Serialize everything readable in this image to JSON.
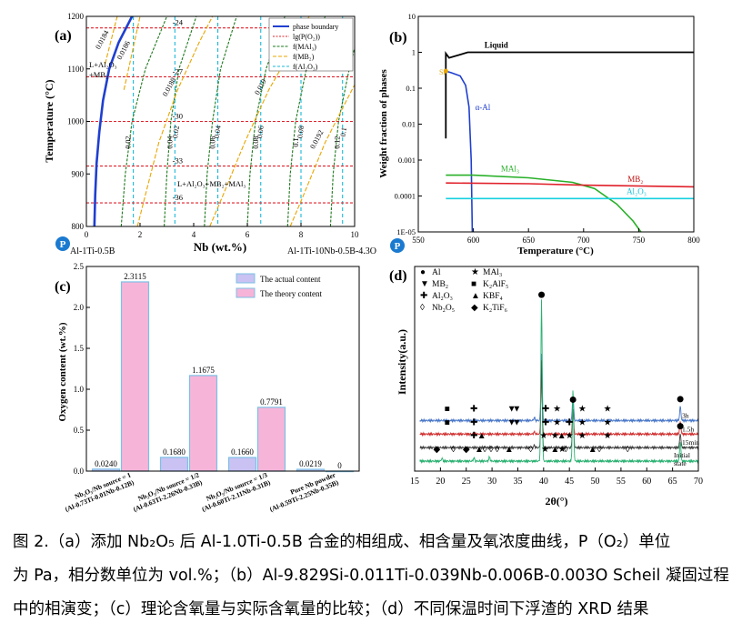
{
  "caption": {
    "line1": "图 2.（a）添加 Nb₂O₅ 后 Al-1.0Ti-0.5B 合金的相组成、相含量及氧浓度曲线，P（O₂）单位",
    "line2": "为 Pa，相分数单位为 vol.%；（b）Al-9.829Si-0.011Ti-0.039Nb-0.006B-0.003O Scheil 凝固过程",
    "line3": "中的相演变；（c）理论含氧量与实际含氧量的比较；（d）不同保温时间下浮渣的 XRD 结果"
  },
  "chart_data": [
    {
      "panel": "(a)",
      "type": "line",
      "xlabel": "Nb (wt.%)",
      "ylabel": "Temperature (°C)",
      "xlim": [
        0,
        10
      ],
      "ylim": [
        800,
        1200
      ],
      "xticks": [
        0,
        2,
        4,
        6,
        8,
        10
      ],
      "yticks": [
        800,
        900,
        1000,
        1100,
        1200
      ],
      "left_note": "Al-1Ti-0.5B",
      "right_note": "Al-1Ti-10Nb-0.5B-4.3O",
      "legend": {
        "position": "top-right",
        "entries": [
          "phase boundary",
          "lg(P(O₂))",
          "f(MAl₃)",
          "f(MB₂)",
          "f(Al₂O₃)"
        ]
      },
      "colors": {
        "phase_boundary": "#1f3fd0",
        "po2": "#e0202a",
        "mal3": "#1e7a1e",
        "mb2": "#e8a600",
        "al2o3": "#18b8d8"
      },
      "phase_boundary": [
        [
          0.3,
          800
        ],
        [
          0.33,
          860
        ],
        [
          0.38,
          920
        ],
        [
          0.48,
          980
        ],
        [
          0.62,
          1040
        ],
        [
          0.85,
          1100
        ],
        [
          1.2,
          1150
        ],
        [
          1.7,
          1200
        ]
      ],
      "po2_isobars": [
        {
          "label": "-24",
          "y": 1178
        },
        {
          "label": "-27",
          "y": 1085
        },
        {
          "label": "-30",
          "y": 1000
        },
        {
          "label": "-33",
          "y": 915
        },
        {
          "label": "-36",
          "y": 845
        }
      ],
      "al2o3_verticals": [
        {
          "label": "0.02",
          "x": 1.75
        },
        {
          "label": "0.04",
          "x": 3.3
        },
        {
          "label": "0.06",
          "x": 4.9
        },
        {
          "label": "0.08",
          "x": 6.5
        },
        {
          "label": "0.1",
          "x": 8.0
        },
        {
          "label": "0.12",
          "x": 9.55
        }
      ],
      "mal3_curves": [
        {
          "label": "",
          "points": [
            [
              1.3,
              800
            ],
            [
              1.45,
              900
            ],
            [
              1.7,
              1000
            ],
            [
              2.2,
              1100
            ],
            [
              3.0,
              1200
            ]
          ]
        },
        {
          "label": "0.02",
          "points": [
            [
              2.9,
              800
            ],
            [
              3.0,
              900
            ],
            [
              3.15,
              1000
            ],
            [
              3.45,
              1100
            ],
            [
              4.1,
              1200
            ]
          ]
        },
        {
          "label": "0.04",
          "points": [
            [
              4.4,
              800
            ],
            [
              4.5,
              900
            ],
            [
              4.7,
              1000
            ],
            [
              5.0,
              1100
            ],
            [
              5.6,
              1200
            ]
          ]
        },
        {
          "label": "0.06",
          "points": [
            [
              6.0,
              800
            ],
            [
              6.1,
              900
            ],
            [
              6.3,
              1000
            ],
            [
              6.7,
              1100
            ],
            [
              7.4,
              1200
            ]
          ]
        },
        {
          "label": "0.08",
          "points": [
            [
              7.5,
              800
            ],
            [
              7.6,
              900
            ],
            [
              7.8,
              1000
            ],
            [
              8.2,
              1100
            ],
            [
              8.9,
              1200
            ]
          ]
        },
        {
          "label": "0.1",
          "points": [
            [
              9.1,
              800
            ],
            [
              9.2,
              900
            ],
            [
              9.4,
              1000
            ],
            [
              9.8,
              1100
            ],
            [
              10.0,
              1140
            ]
          ]
        }
      ],
      "mb2_curves": [
        {
          "label": "0.0184",
          "points": [
            [
              0.7,
              1110
            ],
            [
              0.9,
              1150
            ],
            [
              1.15,
              1200
            ]
          ]
        },
        {
          "label": "0.0186",
          "points": [
            [
              1.4,
              1060
            ],
            [
              1.7,
              1130
            ],
            [
              2.0,
              1200
            ]
          ]
        },
        {
          "label": "0.0188",
          "points": [
            [
              1.9,
              800
            ],
            [
              2.2,
              860
            ],
            [
              2.7,
              960
            ],
            [
              3.4,
              1060
            ],
            [
              4.2,
              1150
            ],
            [
              4.7,
              1200
            ]
          ]
        },
        {
          "label": "0.019",
          "points": [
            [
              4.6,
              800
            ],
            [
              5.1,
              860
            ],
            [
              5.9,
              960
            ],
            [
              6.8,
              1060
            ],
            [
              7.8,
              1150
            ],
            [
              8.3,
              1200
            ]
          ]
        },
        {
          "label": "0.0192",
          "points": [
            [
              7.6,
              800
            ],
            [
              8.1,
              860
            ],
            [
              8.9,
              960
            ],
            [
              9.7,
              1040
            ],
            [
              10.0,
              1070
            ]
          ]
        }
      ],
      "region_labels": [
        "L+Al₂O₃ +MB₂",
        "L+Al₂O₃+MB₂+MAl₃"
      ]
    },
    {
      "panel": "(b)",
      "type": "line",
      "xlabel": "Temperature (°C)",
      "ylabel": "Weight fraction of phases",
      "xscale": "linear",
      "yscale": "log",
      "xlim": [
        550,
        800
      ],
      "ylim": [
        1e-05,
        10
      ],
      "xticks": [
        550,
        600,
        650,
        700,
        750,
        800
      ],
      "yticks": [
        "1E-05",
        "0.0001",
        "0.001",
        "0.01",
        "0.1",
        "1",
        "10"
      ],
      "series": [
        {
          "name": "Liquid",
          "color": "#000000",
          "points": [
            [
              575,
              0.004
            ],
            [
              575,
              0.93
            ],
            [
              578,
              0.7
            ],
            [
              595,
              1.0
            ],
            [
              800,
              1.0
            ]
          ]
        },
        {
          "name": "α-Al",
          "color": "#1f3fd0",
          "points": [
            [
              575,
              0.3
            ],
            [
              580,
              0.27
            ],
            [
              588,
              0.22
            ],
            [
              593,
              0.12
            ],
            [
              596,
              0.03
            ],
            [
              598,
              0.001
            ],
            [
              599,
              1e-05
            ]
          ]
        },
        {
          "name": "Si",
          "color": "#e8a600",
          "points": [
            [
              575,
              0.3
            ]
          ]
        },
        {
          "name": "MAl₃",
          "color": "#28b028",
          "points": [
            [
              575,
              0.00038
            ],
            [
              600,
              0.00038
            ],
            [
              650,
              0.00032
            ],
            [
              690,
              0.00024
            ],
            [
              710,
              0.00016
            ],
            [
              730,
              6e-05
            ],
            [
              745,
              2e-05
            ],
            [
              752,
              1e-05
            ]
          ]
        },
        {
          "name": "MB₂",
          "color": "#e0202a",
          "points": [
            [
              575,
              0.00023
            ],
            [
              650,
              0.00022
            ],
            [
              700,
              0.0002
            ],
            [
              800,
              0.00018
            ]
          ]
        },
        {
          "name": "Al₂O₃",
          "color": "#18d0e0",
          "points": [
            [
              575,
              8.5e-05
            ],
            [
              800,
              8.5e-05
            ]
          ]
        }
      ]
    },
    {
      "panel": "(c)",
      "type": "bar",
      "ylabel": "Oxygen content (wt.%)",
      "ylim": [
        0,
        2.5
      ],
      "yticks": [
        0,
        0.5,
        1.0,
        1.5,
        2.0,
        2.5
      ],
      "legend": {
        "position": "top-right",
        "entries": [
          "The actual content",
          "The theory content"
        ]
      },
      "colors": {
        "actual": "#c9c2f2",
        "theory": "#f7b4d9",
        "edge": "#7cc0e6"
      },
      "categories": [
        {
          "line1": "Nb₂O₅/Nb source = 1",
          "line2": "(Al-0.73Ti-0.01Nb-0.12B)"
        },
        {
          "line1": "Nb₂O₅/Nb source = 1/2",
          "line2": "(Al-0.63Ti-2.26Nb-0.33B)"
        },
        {
          "line1": "Nb₂O₅/Nb source = 1/3",
          "line2": "(Al-0.60Ti-2.11Nb-0.31B)"
        },
        {
          "line1": "Pure Nb powder",
          "line2": "(Al-0.59Ti-2.25Nb-0.35B)"
        }
      ],
      "series": [
        {
          "name": "The actual content",
          "values": [
            0.024,
            0.168,
            0.166,
            0.0219
          ],
          "labels": [
            "0.0240",
            "0.1680",
            "0.1660",
            "0.0219"
          ]
        },
        {
          "name": "The theory content",
          "values": [
            2.3115,
            1.1675,
            0.7791,
            0
          ],
          "labels": [
            "2.3115",
            "1.1675",
            "0.7791",
            "0"
          ]
        }
      ]
    },
    {
      "panel": "(d)",
      "type": "line",
      "xlabel": "2θ(°)",
      "ylabel": "Intensity(a.u.)",
      "xlim": [
        15,
        70
      ],
      "xticks": [
        15,
        20,
        25,
        30,
        35,
        40,
        45,
        50,
        55,
        60,
        65,
        70
      ],
      "legend_entries": [
        {
          "symbol": "●",
          "text": "Al"
        },
        {
          "symbol": "★",
          "text": "MAl₃"
        },
        {
          "symbol": "▼",
          "text": "MB₂"
        },
        {
          "symbol": "■",
          "text": "K₂AlF₅"
        },
        {
          "symbol": "✚",
          "text": "Al₂O₃"
        },
        {
          "symbol": "▲",
          "text": "KBF₄"
        },
        {
          "symbol": "◊",
          "text": "Nb₂O₅"
        },
        {
          "symbol": "◆",
          "text": "K₂TiF₆"
        }
      ],
      "series": [
        {
          "name": "3h",
          "color": "#4a78c8",
          "baseline": 0.8,
          "peaks": [
            [
              39.6,
              1.2
            ],
            [
              45.7,
              0.45
            ],
            [
              66.5,
              0.25
            ],
            [
              38.2,
              0.05
            ]
          ]
        },
        {
          "name": "1.5h",
          "color": "#d03030",
          "baseline": 0.56,
          "peaks": [
            [
              39.6,
              1.05
            ],
            [
              45.7,
              0.42
            ],
            [
              66.5,
              0.22
            ],
            [
              38.2,
              0.04
            ]
          ]
        },
        {
          "name": "15min",
          "color": "#404040",
          "baseline": 0.32,
          "peaks": [
            [
              39.6,
              1.55
            ],
            [
              45.7,
              0.7
            ],
            [
              66.5,
              0.25
            ],
            [
              38.2,
              0.04
            ]
          ]
        },
        {
          "name": "Initial state",
          "color": "#28b070",
          "baseline": 0.08,
          "peaks": [
            [
              39.6,
              2.85
            ],
            [
              45.7,
              1.25
            ],
            [
              66.5,
              0.35
            ],
            [
              20.3,
              0.05
            ],
            [
              26.5,
              0.06
            ],
            [
              29.5,
              0.07
            ]
          ]
        }
      ],
      "markers": [
        {
          "row": "3h",
          "items": [
            [
              "■",
              21.3
            ],
            [
              "✚",
              26.5
            ],
            [
              "▼",
              33.8
            ],
            [
              "▼",
              34.8
            ],
            [
              "✚",
              40.4
            ],
            [
              "★",
              42.6
            ],
            [
              "★",
              47.5
            ],
            [
              "★",
              52.4
            ]
          ]
        },
        {
          "row": "1.5h",
          "items": [
            [
              "■",
              21.3
            ],
            [
              "✚",
              26.5
            ],
            [
              "▼",
              33.8
            ],
            [
              "▼",
              34.8
            ],
            [
              "✚",
              40.4
            ],
            [
              "★",
              42.6
            ],
            [
              "✚",
              45.0
            ],
            [
              "★",
              47.5
            ],
            [
              "★",
              52.4
            ]
          ]
        },
        {
          "row": "15min",
          "items": [
            [
              "✚",
              26.5
            ],
            [
              "▲",
              28.0
            ],
            [
              "★",
              40.0
            ],
            [
              "★",
              42.2
            ],
            [
              "▲",
              43.5
            ],
            [
              "★",
              45.0
            ],
            [
              "★",
              47.5
            ],
            [
              "★",
              52.4
            ]
          ]
        },
        {
          "row": "Initial state",
          "items": [
            [
              "◆",
              19.3
            ],
            [
              "◊",
              22.5
            ],
            [
              "◆",
              25.0
            ],
            [
              "▲",
              27.5
            ],
            [
              "◊",
              28.6
            ],
            [
              "◊",
              29.8
            ],
            [
              "◊",
              31.0
            ],
            [
              "▲",
              33.3
            ],
            [
              "◊",
              37.5
            ],
            [
              "★",
              40.3
            ],
            [
              "▲",
              42.2
            ],
            [
              "★",
              43.6
            ],
            [
              "◊",
              44.3
            ],
            [
              "▲",
              49.5
            ],
            [
              "◊",
              50.8
            ],
            [
              "◊",
              56.3
            ]
          ]
        }
      ]
    }
  ]
}
